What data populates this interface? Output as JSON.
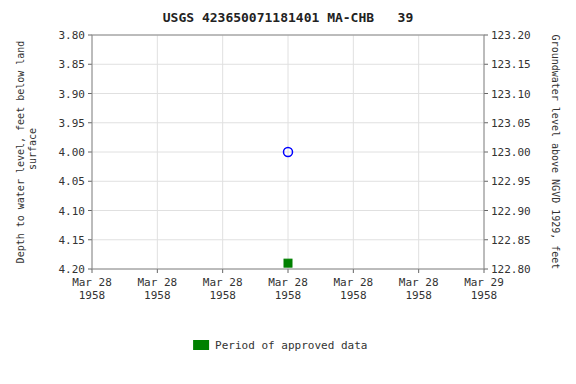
{
  "chart_data": {
    "type": "scatter",
    "title": "USGS 423650071181401 MA-CHB   39",
    "ylabel": "Depth to water level, feet below land\n surface",
    "y2label": "Groundwater level above NGVD 1929, feet",
    "categories": [
      "Mar 28\n1958",
      "Mar 28\n1958",
      "Mar 28\n1958",
      "Mar 28\n1958",
      "Mar 28\n1958",
      "Mar 28\n1958",
      "Mar 29\n1958"
    ],
    "series": [
      {
        "color": "blue",
        "marker": "circle-open",
        "values": [
          null,
          null,
          null,
          4.0,
          null,
          null,
          null
        ]
      },
      {
        "name": "Period of approved data",
        "color": "#008000",
        "marker": "square",
        "values": [
          null,
          null,
          null,
          4.19,
          null,
          null,
          null
        ]
      }
    ],
    "ylim": [
      4.2,
      3.8
    ],
    "yticks": [
      {
        "value": 3.8,
        "label": "3.80"
      },
      {
        "value": 3.85,
        "label": "3.85"
      },
      {
        "value": 3.9,
        "label": "3.90"
      },
      {
        "value": 3.95,
        "label": "3.95"
      },
      {
        "value": 4.0,
        "label": "4.00"
      },
      {
        "value": 4.05,
        "label": "4.05"
      },
      {
        "value": 4.1,
        "label": "4.10"
      },
      {
        "value": 4.15,
        "label": "4.15"
      },
      {
        "value": 4.2,
        "label": "4.20"
      }
    ],
    "y2lim": [
      122.8,
      123.2
    ],
    "y2ticks": [
      {
        "value": 122.8,
        "label": "122.80"
      },
      {
        "value": 122.85,
        "label": "122.85"
      },
      {
        "value": 122.9,
        "label": "122.90"
      },
      {
        "value": 122.95,
        "label": "122.95"
      },
      {
        "value": 123.0,
        "label": "123.00"
      },
      {
        "value": 123.05,
        "label": "123.05"
      },
      {
        "value": 123.1,
        "label": "123.10"
      },
      {
        "value": 123.15,
        "label": "123.15"
      },
      {
        "value": 123.2,
        "label": "123.20"
      }
    ],
    "grid": true,
    "legend": "bottom"
  }
}
